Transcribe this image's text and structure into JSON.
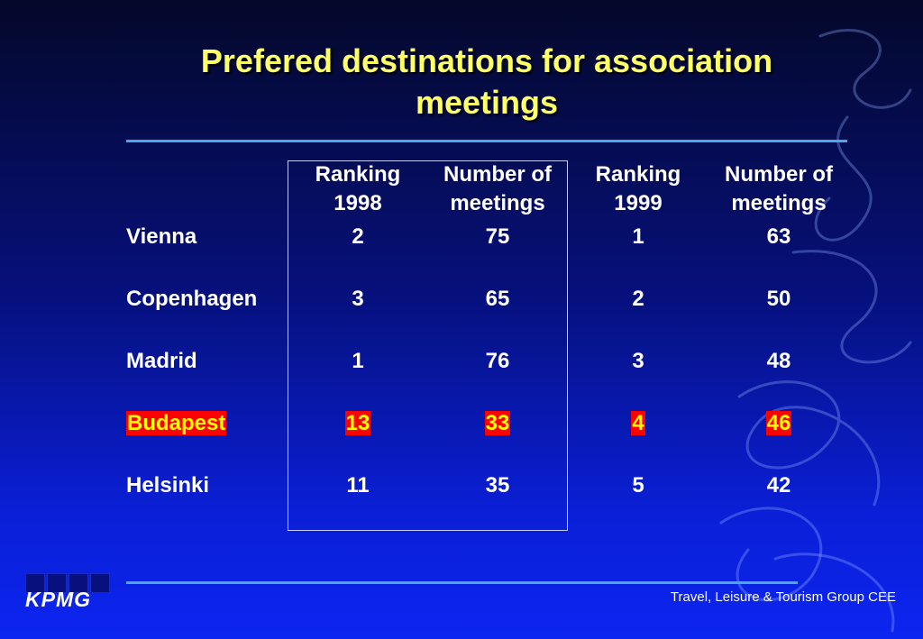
{
  "slide": {
    "title": "Prefered destinations for association meetings",
    "footer": "Travel, Leisure & Tourism Group CEE",
    "logo_text": "KPMG"
  },
  "table": {
    "headers": [
      {
        "line1": "Ranking",
        "line2": "1998"
      },
      {
        "line1": "Number of",
        "line2": "meetings"
      },
      {
        "line1": "Ranking",
        "line2": "1999"
      },
      {
        "line1": "Number of",
        "line2": "meetings"
      }
    ],
    "rows": [
      {
        "city": "Vienna",
        "values": [
          "2",
          "75",
          "1",
          "63"
        ],
        "highlight": false
      },
      {
        "city": "Copenhagen",
        "values": [
          "3",
          "65",
          "2",
          "50"
        ],
        "highlight": false
      },
      {
        "city": "Madrid",
        "values": [
          "1",
          "76",
          "3",
          "48"
        ],
        "highlight": false
      },
      {
        "city": "Budapest",
        "values": [
          "13",
          "33",
          "4",
          "46"
        ],
        "highlight": true
      },
      {
        "city": "Helsinki",
        "values": [
          "11",
          "35",
          "5",
          "42"
        ],
        "highlight": false
      }
    ]
  },
  "colors": {
    "title": "#ffff66",
    "highlight_bg": "#ff0000",
    "highlight_text": "#ffff00",
    "rule": "#4aa8e8"
  }
}
